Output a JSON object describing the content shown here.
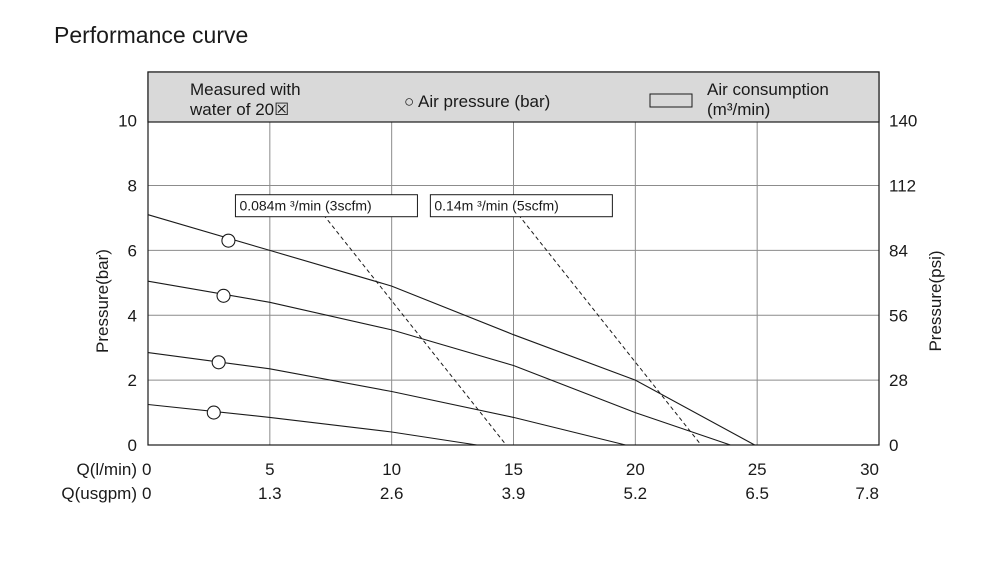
{
  "page_title": "Performance curve",
  "chart_data": {
    "type": "line",
    "title": "Performance curve",
    "legend": {
      "note_line1": "Measured with",
      "note_line2": "water of 20☒",
      "air_pressure": "○ Air pressure (bar)",
      "air_consumption_line1": "Air consumption",
      "air_consumption_line2": "(m³/min)"
    },
    "y_left": {
      "label": "Pressure(bar)",
      "range": [
        0,
        11.5
      ],
      "ticks": [
        "0",
        "2",
        "4",
        "6",
        "8",
        "10"
      ]
    },
    "y_right": {
      "label": "Pressure(psi)",
      "ticks": [
        "0",
        "28",
        "56",
        "84",
        "112",
        "140"
      ]
    },
    "x": {
      "range": [
        0,
        30
      ],
      "row1_label": "Q(l/min)",
      "row1_ticks": [
        "0",
        "5",
        "10",
        "15",
        "20",
        "25",
        "30"
      ],
      "row2_label": "Q(usgpm)",
      "row2_ticks": [
        "0",
        "1.3",
        "2.6",
        "3.9",
        "5.2",
        "6.5",
        "7.8"
      ]
    },
    "grid": true,
    "series": [
      {
        "air_pressure_marker_at": [
          3.3,
          6.3
        ],
        "points": [
          [
            0,
            7.1
          ],
          [
            5,
            6.0
          ],
          [
            10,
            4.9
          ],
          [
            15,
            3.4
          ],
          [
            20,
            2.0
          ],
          [
            24.9,
            0
          ]
        ]
      },
      {
        "air_pressure_marker_at": [
          3.1,
          4.6
        ],
        "points": [
          [
            0,
            5.05
          ],
          [
            5,
            4.4
          ],
          [
            10,
            3.55
          ],
          [
            15,
            2.45
          ],
          [
            20,
            1.0
          ],
          [
            23.9,
            0
          ]
        ]
      },
      {
        "air_pressure_marker_at": [
          2.9,
          2.55
        ],
        "points": [
          [
            0,
            2.85
          ],
          [
            5,
            2.35
          ],
          [
            10,
            1.65
          ],
          [
            15,
            0.85
          ],
          [
            19.6,
            0
          ]
        ]
      },
      {
        "air_pressure_marker_at": [
          2.7,
          1.0
        ],
        "points": [
          [
            0,
            1.25
          ],
          [
            5,
            0.85
          ],
          [
            10,
            0.4
          ],
          [
            13.5,
            0
          ]
        ]
      }
    ],
    "consumption_lines": [
      {
        "label": "0.084m ³/min (3scfm)",
        "from": [
          7.2,
          7.1
        ],
        "to": [
          14.7,
          0
        ]
      },
      {
        "label": "0.14m ³/min (5scfm)",
        "from": [
          15.2,
          7.1
        ],
        "to": [
          22.7,
          0
        ]
      }
    ]
  }
}
